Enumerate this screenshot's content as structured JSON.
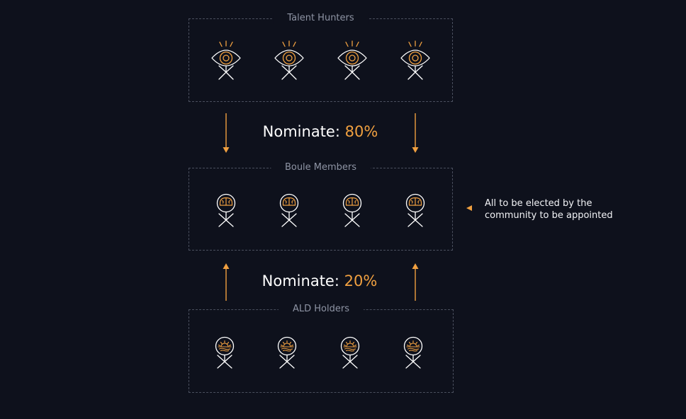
{
  "groups": [
    {
      "id": "talent",
      "label": "Talent Hunters",
      "icon": "eye-person-icon",
      "count": 4
    },
    {
      "id": "boule",
      "label": "Boule Members",
      "icon": "brain-person-icon",
      "count": 4
    },
    {
      "id": "ald",
      "label": "ALD Holders",
      "icon": "sun-person-icon",
      "count": 4
    }
  ],
  "flows": [
    {
      "id": "talent-to-boule",
      "label": "Nominate:",
      "percent": "80%",
      "direction": "down"
    },
    {
      "id": "ald-to-boule",
      "label": "Nominate:",
      "percent": "20%",
      "direction": "up"
    }
  ],
  "note": {
    "line1": "All to be elected by the",
    "line2": "community to be appointed"
  },
  "colors": {
    "background": "#0e111c",
    "accent": "#f0a040",
    "line": "#ffffff",
    "border": "#4a4f5e",
    "label": "#8e94a4"
  }
}
